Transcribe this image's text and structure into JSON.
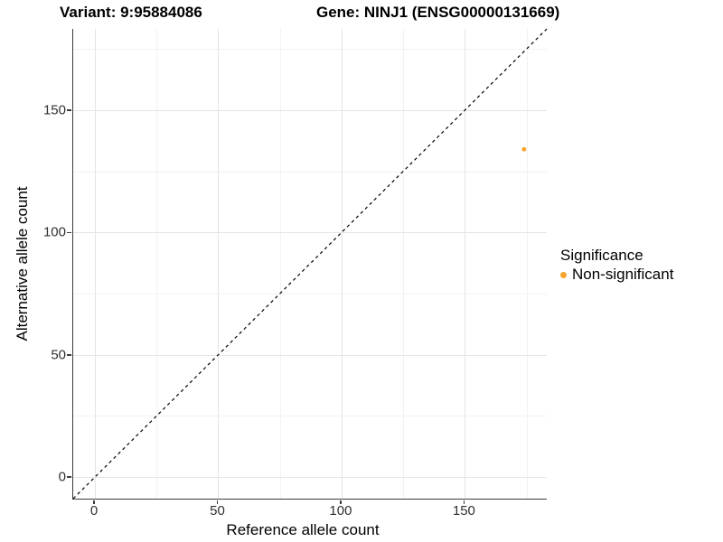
{
  "titles": {
    "variant": "Variant: 9:95884086",
    "gene": "Gene: NINJ1 (ENSG00000131669)"
  },
  "axes": {
    "x": {
      "label": "Reference allele count",
      "major_ticks": [
        0,
        50,
        100,
        150
      ],
      "minor_ticks": [
        25,
        75,
        125,
        175
      ],
      "range": [
        -8.8,
        183.2
      ]
    },
    "y": {
      "label": "Alternative allele count",
      "major_ticks": [
        0,
        50,
        100,
        150
      ],
      "minor_ticks": [
        25,
        75,
        125,
        175
      ],
      "range": [
        -8.8,
        183.2
      ]
    }
  },
  "legend": {
    "title": "Significance",
    "items": [
      {
        "label": "Non-significant",
        "color": "#F9A32B"
      }
    ]
  },
  "colors": {
    "point": "#F9A32B",
    "grid_major": "#E5E5E5",
    "grid_minor": "#F2F2F2",
    "axis_line": "#3C3C3C",
    "tick_text": "#303030",
    "identity_line": "#000000"
  },
  "chart_data": {
    "type": "scatter",
    "title": "Variant: 9:95884086 | Gene: NINJ1 (ENSG00000131669)",
    "xlabel": "Reference allele count",
    "ylabel": "Alternative allele count",
    "xlim": [
      -8.8,
      183.2
    ],
    "ylim": [
      -8.8,
      183.2
    ],
    "x_ticks": [
      0,
      50,
      100,
      150
    ],
    "y_ticks": [
      0,
      50,
      100,
      150
    ],
    "grid": true,
    "legend_position": "right",
    "series": [
      {
        "name": "Non-significant",
        "color": "#F9A32B",
        "points": [
          [
            174,
            134
          ]
        ]
      }
    ],
    "reference_line": {
      "type": "identity y=x",
      "style": "dashed",
      "color": "#000000"
    }
  }
}
